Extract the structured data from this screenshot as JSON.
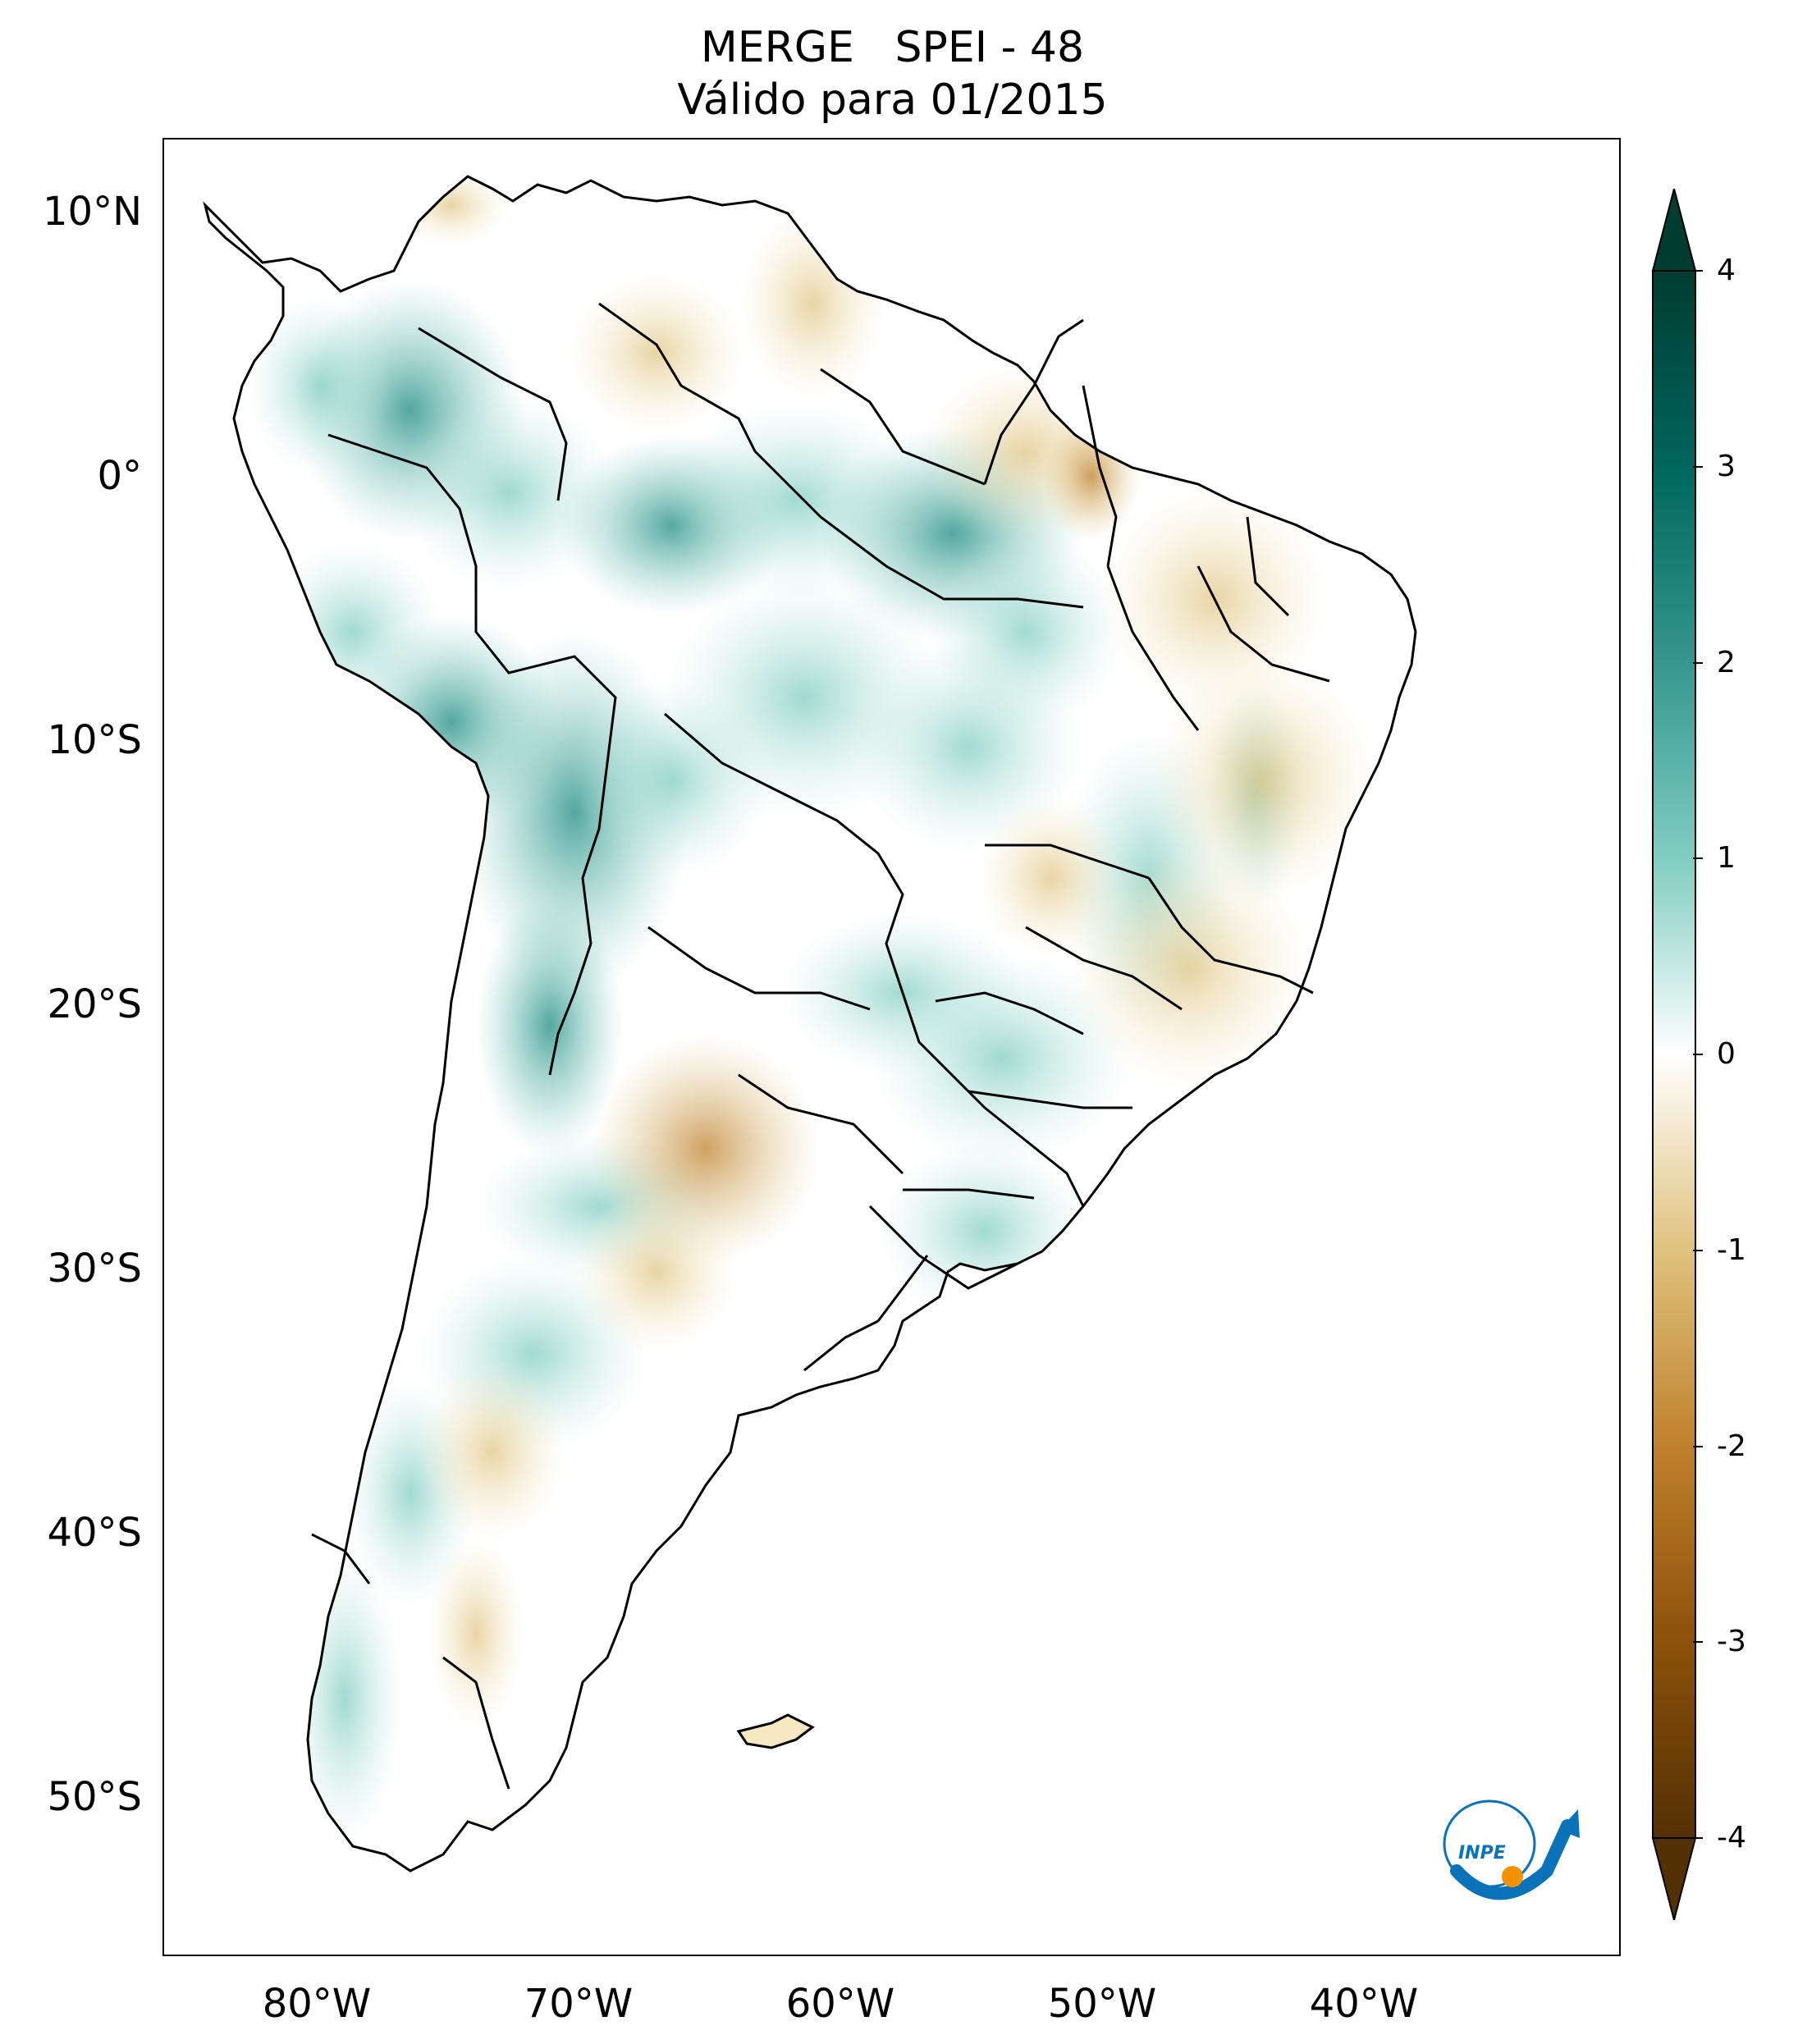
{
  "title": {
    "line1": "MERGE   SPEI - 48",
    "line2": "Válido para 01/2015"
  },
  "map": {
    "latitude_labels": [
      "10°N",
      "0°",
      "10°S",
      "20°S",
      "30°S",
      "40°S",
      "50°S"
    ],
    "longitude_labels": [
      "80°W",
      "70°W",
      "60°W",
      "50°W",
      "40°W"
    ],
    "extent": {
      "lon_min": -85,
      "lon_max": -29,
      "lat_min": -56,
      "lat_max": 13
    },
    "variable": "SPEI - 48",
    "dataset": "MERGE",
    "period": "01/2015"
  },
  "colorbar": {
    "ticks": [
      "4",
      "3",
      "2",
      "1",
      "0",
      "-1",
      "-2",
      "-3",
      "-4"
    ],
    "min": -4,
    "max": 4,
    "extend": "both",
    "colormap": "BrBG",
    "colors": [
      "#543005",
      "#8c510a",
      "#bf812d",
      "#dfc27d",
      "#f6e8c3",
      "#ffffff",
      "#c7eae5",
      "#80cdc1",
      "#35978f",
      "#01665e",
      "#003c30"
    ]
  },
  "logo": {
    "text": "INPE",
    "colors": {
      "blue": "#0a72b8",
      "orange": "#f39200"
    }
  }
}
